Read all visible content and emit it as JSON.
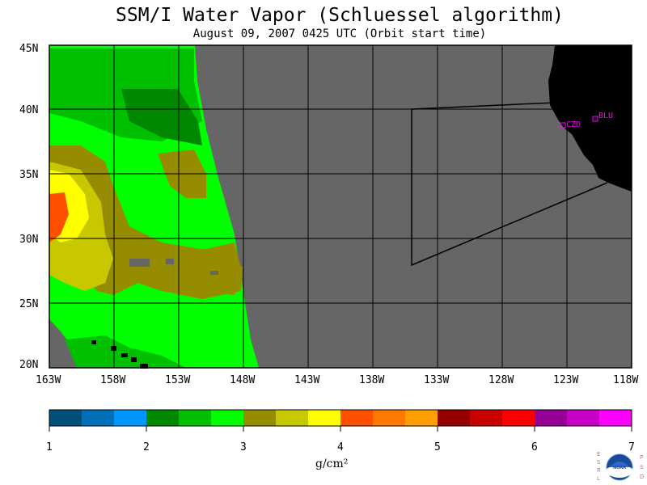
{
  "header": {
    "title": "SSM/I Water Vapor (Schluessel algorithm)",
    "subtitle": "August 09, 2007  0425 UTC  (Orbit start time)"
  },
  "map": {
    "lat_labels": [
      "45N",
      "40N",
      "35N",
      "30N",
      "25N",
      "20N"
    ],
    "lon_labels": [
      "163W",
      "158W",
      "153W",
      "148W",
      "143W",
      "138W",
      "133W",
      "128W",
      "123W",
      "118W"
    ],
    "stations": [
      {
        "id": "CZD",
        "label": "CZD"
      },
      {
        "id": "BLU",
        "label": "BLU"
      }
    ],
    "colors": {
      "nodata": "#666666",
      "land": "#000000",
      "grid": "#000000",
      "station": "#ff00ff"
    }
  },
  "colorbar": {
    "units": "g/cm²",
    "tick_labels": [
      "1",
      "2",
      "3",
      "4",
      "5",
      "6",
      "7"
    ],
    "colors": [
      "#005078",
      "#0070b8",
      "#0096ff",
      "#008800",
      "#00c000",
      "#00ff00",
      "#968c00",
      "#c8c800",
      "#ffff00",
      "#ff5000",
      "#ff7800",
      "#ffa000",
      "#960000",
      "#c80000",
      "#ff0000",
      "#960096",
      "#c800c8",
      "#ff00ff"
    ]
  },
  "logo": {
    "left_text": [
      "E",
      "S",
      "R",
      "L"
    ],
    "right_text": [
      "P",
      "S",
      "D"
    ],
    "center_text": "NOAA"
  }
}
